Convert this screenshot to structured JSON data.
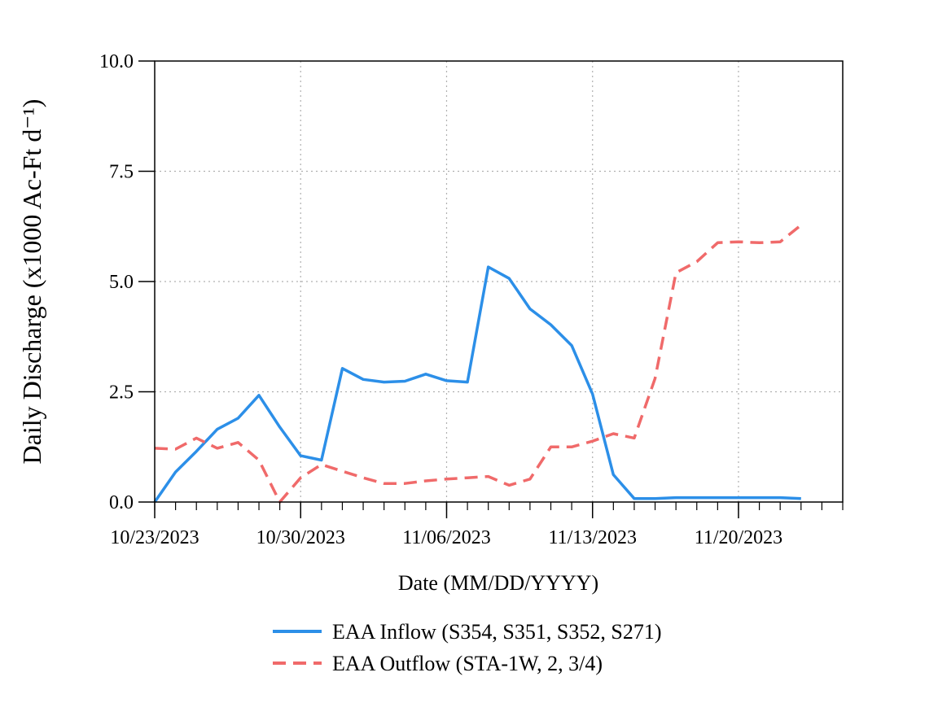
{
  "chart_data": {
    "type": "line",
    "title": "",
    "xlabel": "Date (MM/DD/YYYY)",
    "ylabel": "Daily Discharge (x1000 Ac-Ft d⁻¹)",
    "x_start": "10/23/2023",
    "x_end": "11/25/2023",
    "xlim": [
      "10/23/2023",
      "11/25/2023"
    ],
    "ylim": [
      0,
      10
    ],
    "x_ticks": [
      "10/23/2023",
      "10/30/2023",
      "11/06/2023",
      "11/13/2023",
      "11/20/2023"
    ],
    "y_ticks": [
      "0.0",
      "2.5",
      "5.0",
      "7.5",
      "10.0"
    ],
    "grid": true,
    "legend_position": "bottom",
    "x": [
      "10/23/2023",
      "10/24/2023",
      "10/25/2023",
      "10/26/2023",
      "10/27/2023",
      "10/28/2023",
      "10/29/2023",
      "10/30/2023",
      "10/31/2023",
      "11/01/2023",
      "11/02/2023",
      "11/03/2023",
      "11/04/2023",
      "11/05/2023",
      "11/06/2023",
      "11/07/2023",
      "11/08/2023",
      "11/09/2023",
      "11/10/2023",
      "11/11/2023",
      "11/12/2023",
      "11/13/2023",
      "11/14/2023",
      "11/15/2023",
      "11/16/2023",
      "11/17/2023",
      "11/18/2023",
      "11/19/2023",
      "11/20/2023",
      "11/21/2023",
      "11/22/2023",
      "11/23/2023"
    ],
    "series": [
      {
        "name": "EAA Inflow (S354, S351, S352, S271)",
        "color": "#2c8fe8",
        "dash": "solid",
        "values": [
          0.0,
          0.68,
          1.15,
          1.65,
          1.9,
          2.42,
          1.7,
          1.05,
          0.95,
          3.03,
          2.78,
          2.72,
          2.74,
          2.9,
          2.75,
          2.72,
          5.33,
          5.07,
          4.38,
          4.02,
          3.55,
          2.45,
          0.62,
          0.08,
          0.08,
          0.1,
          0.1,
          0.1,
          0.1,
          0.1,
          0.1,
          0.08
        ]
      },
      {
        "name": "EAA Outflow (STA-1W, 2, 3/4)",
        "color": "#f06a6a",
        "dash": "dashed",
        "values": [
          1.22,
          1.2,
          1.45,
          1.22,
          1.35,
          0.95,
          0.0,
          0.55,
          0.85,
          0.7,
          0.55,
          0.42,
          0.42,
          0.48,
          0.52,
          0.55,
          0.58,
          0.38,
          0.52,
          1.25,
          1.25,
          1.38,
          1.55,
          1.45,
          2.8,
          5.2,
          5.45,
          5.88,
          5.9,
          5.88,
          5.9,
          6.28
        ]
      }
    ]
  }
}
